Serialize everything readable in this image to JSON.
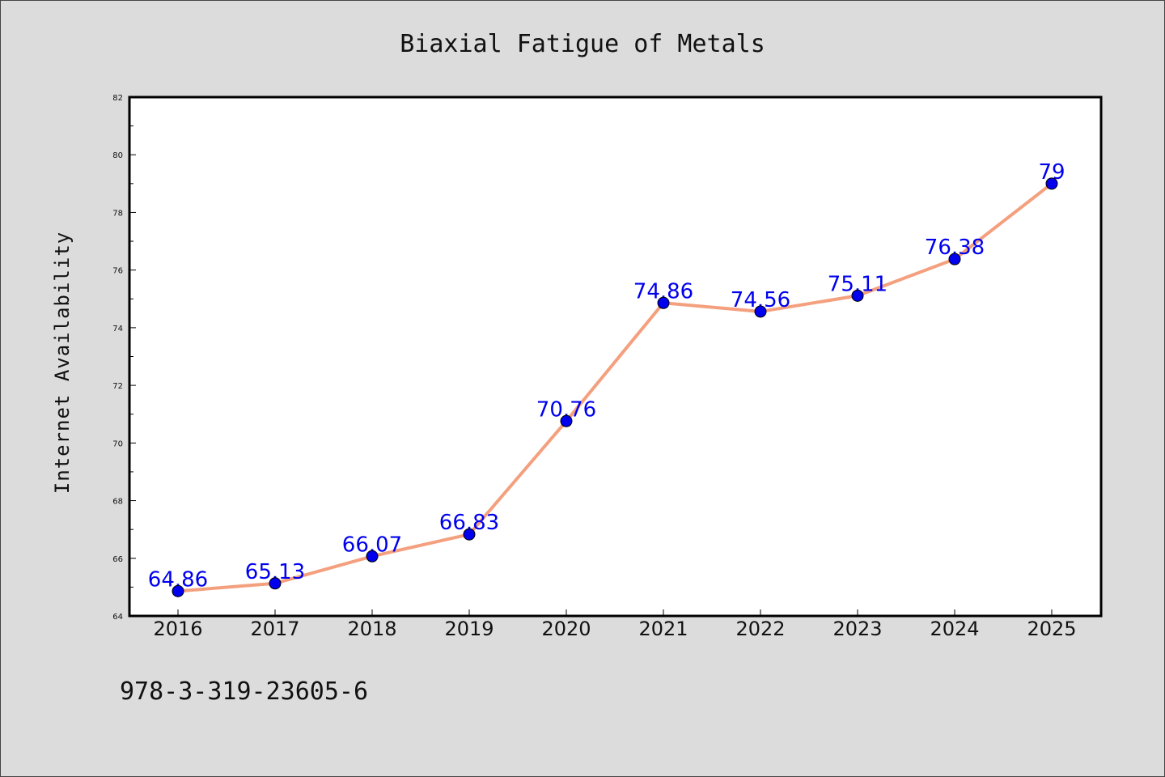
{
  "chart_data": {
    "type": "line",
    "title": "Biaxial Fatigue of Metals",
    "xlabel": "",
    "ylabel": "Internet Availability",
    "categories": [
      "2016",
      "2017",
      "2018",
      "2019",
      "2020",
      "2021",
      "2022",
      "2023",
      "2024",
      "2025"
    ],
    "series": [
      {
        "values": [
          64.86,
          65.13,
          66.07,
          66.83,
          70.76,
          74.86,
          74.56,
          75.11,
          76.38,
          79
        ],
        "data_labels": [
          "64.86",
          "65.13",
          "66.07",
          "66.83",
          "70.76",
          "74.86",
          "74.56",
          "75.11",
          "76.38",
          "79"
        ],
        "line_color": "#f4a07e",
        "marker_color": "#0000ee"
      }
    ],
    "ylim": [
      64,
      82
    ],
    "yticks": [
      64,
      66,
      68,
      70,
      72,
      74,
      76,
      78,
      80,
      82
    ],
    "ytick_labels": [
      "64",
      "66",
      "68",
      "70",
      "72",
      "74",
      "76",
      "78",
      "80",
      "82"
    ],
    "grid": false,
    "legend": "none"
  },
  "footer": {
    "text": "978-3-319-23605-6"
  },
  "colors": {
    "background": "#dcdcdc",
    "plot_background": "#ffffff",
    "label_color": "#0000ee"
  }
}
